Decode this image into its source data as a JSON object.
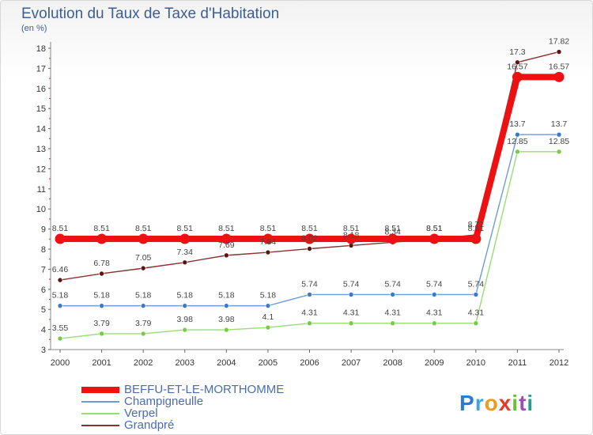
{
  "title": "Evolution du Taux de Taxe d'Habitation",
  "unit_label": "(en %)",
  "logo_letters": [
    {
      "ch": "P",
      "color": "#2a7bd6"
    },
    {
      "ch": "r",
      "color": "#3aa8e0"
    },
    {
      "ch": "o",
      "color": "#f29a1c"
    },
    {
      "ch": "x",
      "color": "#e23c2a"
    },
    {
      "ch": "i",
      "color": "#6cbf3a"
    },
    {
      "ch": "t",
      "color": "#9a4fb8"
    },
    {
      "ch": "i",
      "color": "#2a9d8f"
    }
  ],
  "chart_data": {
    "type": "line",
    "x": [
      "2000",
      "2001",
      "2002",
      "2003",
      "2004",
      "2005",
      "2006",
      "2007",
      "2008",
      "2009",
      "2010",
      "2011",
      "2012"
    ],
    "ylim": [
      3,
      18
    ],
    "yticks": [
      3,
      4,
      5,
      6,
      7,
      8,
      9,
      10,
      11,
      12,
      13,
      14,
      15,
      16,
      17,
      18
    ],
    "grid": false,
    "legend_position": "bottom-left",
    "series": [
      {
        "name": "BEFFU-ET-LE-MORTHOMME",
        "color": "#ee1111",
        "emphasis": true,
        "values": [
          8.51,
          8.51,
          8.51,
          8.51,
          8.51,
          8.51,
          8.51,
          8.51,
          8.51,
          8.51,
          8.51,
          16.57,
          16.57
        ],
        "labels": [
          "8.51",
          "8.51",
          "8.51",
          "8.51",
          "8.51",
          "8.51",
          "8.51",
          "8.51",
          "8.51",
          "8.51",
          "8.51",
          "16.57",
          "16.57"
        ]
      },
      {
        "name": "Champigneulle",
        "color": "#6e9bd3",
        "marker": "#3b7cc4",
        "values": [
          5.18,
          5.18,
          5.18,
          5.18,
          5.18,
          5.18,
          5.74,
          5.74,
          5.74,
          5.74,
          5.74,
          13.7,
          13.7
        ],
        "labels": [
          "5.18",
          "5.18",
          "5.18",
          "5.18",
          "5.18",
          "5.18",
          "5.74",
          "5.74",
          "5.74",
          "5.74",
          "5.74",
          "13.7",
          "13.7"
        ]
      },
      {
        "name": "Verpel",
        "color": "#99dd77",
        "marker": "#77cc44",
        "values": [
          3.55,
          3.79,
          3.79,
          3.98,
          3.98,
          4.1,
          4.31,
          4.31,
          4.31,
          4.31,
          4.31,
          12.85,
          12.85
        ],
        "labels": [
          "3.55",
          "3.79",
          "3.79",
          "3.98",
          "3.98",
          "4.1",
          "4.31",
          "4.31",
          "4.31",
          "4.31",
          "4.31",
          "12.85",
          "12.85"
        ]
      },
      {
        "name": "Grandpré",
        "color": "#8b3030",
        "marker": "#5a1414",
        "values": [
          6.46,
          6.78,
          7.05,
          7.34,
          7.69,
          7.84,
          8.02,
          8.18,
          8.34,
          8.51,
          8.71,
          17.3,
          17.82
        ],
        "labels": [
          "6.46",
          "6.78",
          "7.05",
          "7.34",
          "7.69",
          "7.84",
          "8.02",
          "8.18",
          "8.34",
          "8.51",
          "8.71",
          "17.3",
          "17.82"
        ]
      }
    ]
  }
}
